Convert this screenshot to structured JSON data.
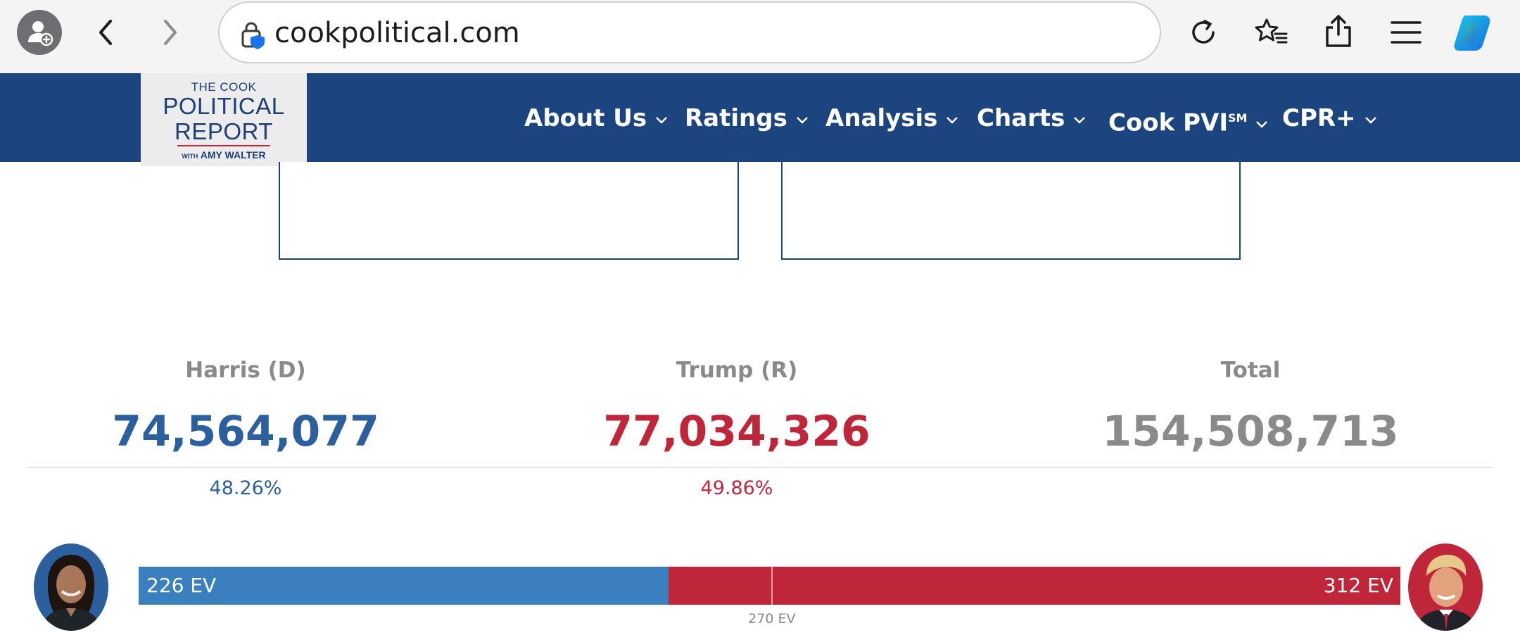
{
  "browser": {
    "url": "cookpolitical.com",
    "icons": [
      "profile-icon",
      "back-arrow-icon",
      "forward-arrow-icon",
      "lock-shield-icon",
      "reload-icon",
      "favorites-icon",
      "share-icon",
      "menu-icon",
      "copilot-icon"
    ]
  },
  "site": {
    "logo": {
      "line1": "THE COOK",
      "line2": "POLITICAL",
      "line3": "REPORT",
      "line4_small": "WITH",
      "line4": "AMY WALTER"
    },
    "nav": [
      {
        "label": "About Us"
      },
      {
        "label": "Ratings"
      },
      {
        "label": "Analysis"
      },
      {
        "label": "Charts"
      },
      {
        "label": "Cook PVI",
        "sup": "SM"
      },
      {
        "label": "CPR+"
      }
    ],
    "colors": {
      "header": "#1c4580",
      "dem": "#3a7fbe",
      "rep": "#c0263a",
      "total": "#8a8a8a"
    }
  },
  "popular_vote": {
    "dem": {
      "label": "Harris (D)",
      "votes": "74,564,077",
      "pct": "48.26%",
      "color": "#2b5f9e"
    },
    "rep": {
      "label": "Trump (R)",
      "votes": "77,034,326",
      "pct": "49.86%",
      "color": "#c0263a"
    },
    "total": {
      "label": "Total",
      "votes": "154,508,713"
    }
  },
  "electoral": {
    "dem_label": "226 EV",
    "rep_label": "312 EV",
    "threshold_label": "270 EV",
    "dem_ev": 226,
    "rep_ev": 312,
    "threshold_ev": 270,
    "total_ev": 538
  }
}
